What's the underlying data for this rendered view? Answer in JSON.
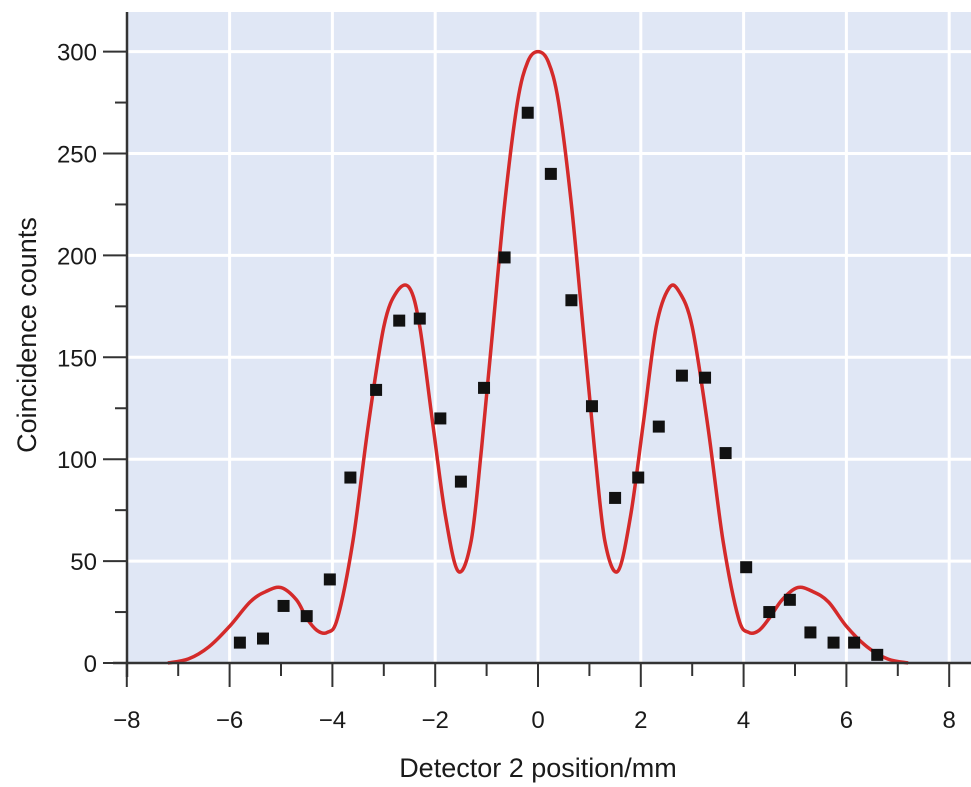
{
  "chart_data": {
    "type": "scatter",
    "xlabel": "Detector 2 position/mm",
    "ylabel": "Coincidence counts",
    "xlim": [
      -8,
      8.2
    ],
    "ylim": [
      0,
      310
    ],
    "xticks": [
      -8,
      -6,
      -4,
      -2,
      0,
      2,
      4,
      6,
      8
    ],
    "yticks": [
      0,
      50,
      100,
      150,
      200,
      250,
      300
    ],
    "grid": true,
    "colors": {
      "plot_background": "#e0e7f5",
      "grid": "#ffffff",
      "curve": "#d42a2a",
      "points": "#111111",
      "axis": "#333333"
    },
    "series": [
      {
        "kind": "points",
        "x": [
          -5.8,
          -5.35,
          -4.95,
          -4.5,
          -4.05,
          -3.65,
          -3.15,
          -2.7,
          -2.3,
          -1.9,
          -1.5,
          -1.05,
          -0.65,
          -0.2,
          0.25,
          0.65,
          1.05,
          1.5,
          1.95,
          2.35,
          2.8,
          3.25,
          3.65,
          4.05,
          4.5,
          4.9,
          5.3,
          5.75,
          6.15,
          6.6
        ],
        "y": [
          10,
          12,
          28,
          23,
          41,
          91,
          134,
          168,
          169,
          120,
          89,
          135,
          199,
          270,
          240,
          178,
          126,
          81,
          91,
          116,
          141,
          140,
          103,
          47,
          25,
          31,
          15,
          10,
          10,
          4
        ]
      },
      {
        "kind": "curve",
        "x": [
          -7.2,
          -6.8,
          -6.4,
          -6.0,
          -5.6,
          -5.3,
          -5.0,
          -4.7,
          -4.5,
          -4.3,
          -4.1,
          -3.9,
          -3.6,
          -3.3,
          -3.0,
          -2.75,
          -2.5,
          -2.3,
          -2.05,
          -1.8,
          -1.55,
          -1.3,
          -1.1,
          -0.9,
          -0.65,
          -0.4,
          -0.2,
          0.0,
          0.2,
          0.4,
          0.65,
          0.9,
          1.1,
          1.3,
          1.55,
          1.8,
          2.05,
          2.3,
          2.55,
          2.75,
          3.0,
          3.3,
          3.6,
          3.9,
          4.1,
          4.3,
          4.5,
          4.75,
          5.05,
          5.35,
          5.65,
          6.0,
          6.4,
          6.8,
          7.2
        ],
        "y": [
          0,
          2,
          8,
          18,
          30,
          35,
          37,
          31,
          22,
          16,
          15,
          22,
          60,
          117,
          165,
          182,
          184,
          165,
          118,
          72,
          45,
          60,
          105,
          158,
          225,
          275,
          295,
          300,
          295,
          275,
          225,
          158,
          105,
          60,
          45,
          72,
          118,
          165,
          184,
          182,
          165,
          117,
          60,
          22,
          15,
          16,
          22,
          31,
          37,
          35,
          30,
          18,
          8,
          2,
          0
        ]
      }
    ]
  }
}
